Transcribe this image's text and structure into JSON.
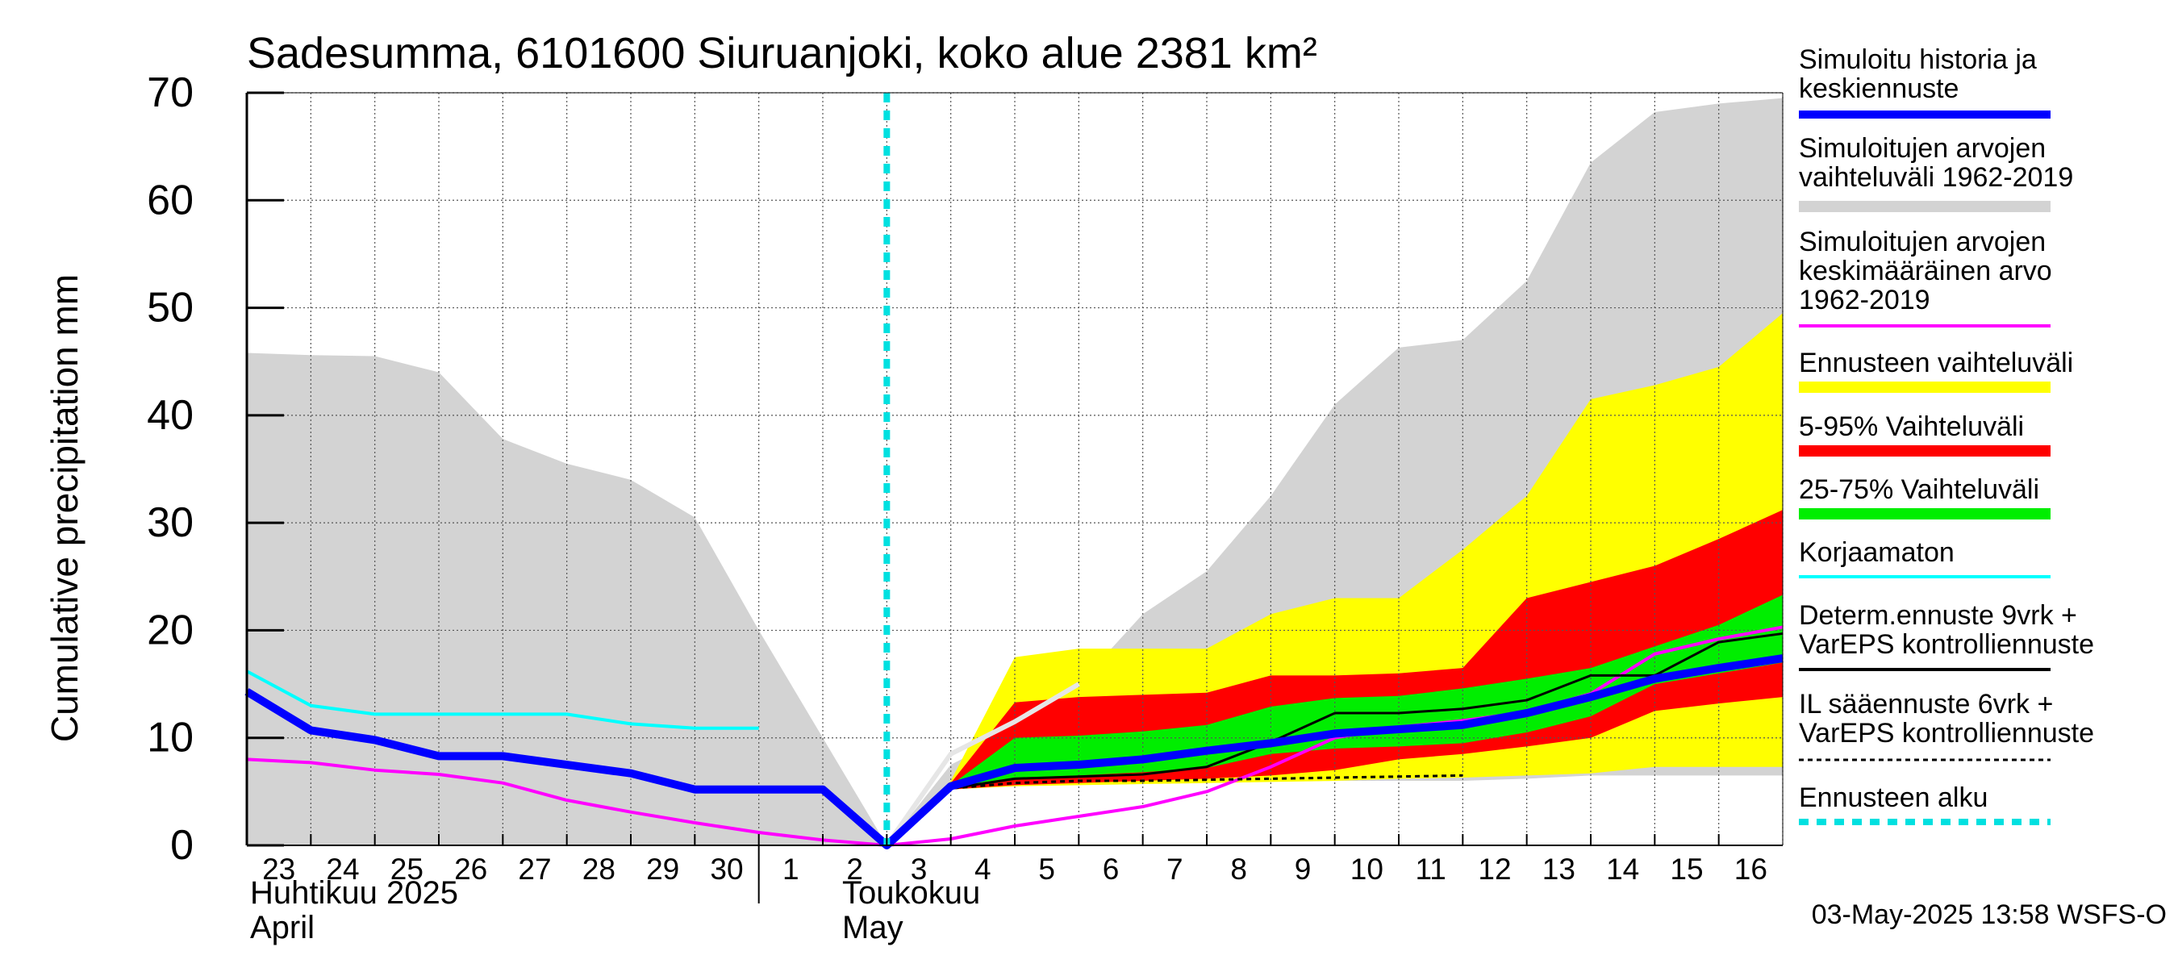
{
  "chart_data": {
    "type": "area",
    "title": "Sadesumma, 6101600 Siuruanjoki, koko alue 2381 km²",
    "ylabel": "Cumulative precipitation   mm",
    "ylim": [
      0,
      70
    ],
    "yticks": [
      0,
      10,
      20,
      30,
      40,
      50,
      60,
      70
    ],
    "x_ticks": [
      "23",
      "24",
      "25",
      "26",
      "27",
      "28",
      "29",
      "30",
      "1",
      "2",
      "3",
      "4",
      "5",
      "6",
      "7",
      "8",
      "9",
      "10",
      "11",
      "12",
      "13",
      "14",
      "15",
      "16"
    ],
    "x_start": "2025-04-23",
    "x_end": "2025-05-17",
    "month_labels": [
      {
        "line1": "Huhtikuu  2025",
        "line2": "April",
        "date": "2025-04-23"
      },
      {
        "line1": "Toukokuu",
        "line2": "May",
        "date": "2025-05-02"
      }
    ],
    "forecast_start": "2025-05-03",
    "timestamp": "03-May-2025 13:58 WSFS-O",
    "colors": {
      "sim": "#0000ff",
      "hist_range": "#d3d3d3",
      "hist_mean": "#ff00ff",
      "ens_range": "#ffff00",
      "p5_95": "#ff0000",
      "p25_75": "#00ee00",
      "uncorrected": "#00ffff",
      "determ": "#000000",
      "start": "#00e0e0"
    },
    "legend": [
      {
        "label": "Simuloitu historia ja\nkeskiennuste",
        "color": "#0000ff",
        "style": "thick"
      },
      {
        "label": "Simuloitujen arvojen\nvaihteluväli 1962-2019",
        "color": "#d3d3d3",
        "style": "band"
      },
      {
        "label": "Simuloitujen arvojen\nkeskimääräinen arvo\n   1962-2019",
        "color": "#ff00ff",
        "style": "line"
      },
      {
        "label": "Ennusteen vaihteluväli",
        "color": "#ffff00",
        "style": "band"
      },
      {
        "label": "5-95% Vaihteluväli",
        "color": "#ff0000",
        "style": "band"
      },
      {
        "label": "25-75% Vaihteluväli",
        "color": "#00ee00",
        "style": "band"
      },
      {
        "label": "Korjaamaton",
        "color": "#00ffff",
        "style": "line"
      },
      {
        "label": "Determ.ennuste 9vrk +\nVarEPS kontrolliennuste",
        "color": "#000000",
        "style": "line"
      },
      {
        "label": "IL sääennuste 6vrk  +\n  VarEPS kontrolliennuste",
        "color": "#000000",
        "style": "dashed"
      },
      {
        "label": "Ennusteen alku",
        "color": "#00e0e0",
        "style": "dotted"
      }
    ],
    "series": [
      {
        "name": "Simuloitujen arvojen vaihteluväli 1962-2019",
        "kind": "band",
        "x": [
          "2025-04-23",
          "2025-04-24",
          "2025-04-25",
          "2025-04-26",
          "2025-04-27",
          "2025-04-28",
          "2025-04-29",
          "2025-04-30",
          "2025-05-01",
          "2025-05-02",
          "2025-05-03",
          "2025-05-04",
          "2025-05-05",
          "2025-05-06",
          "2025-05-07",
          "2025-05-08",
          "2025-05-09",
          "2025-05-10",
          "2025-05-11",
          "2025-05-12",
          "2025-05-13",
          "2025-05-14",
          "2025-05-15",
          "2025-05-16",
          "2025-05-17"
        ],
        "lower": [
          0,
          0,
          0,
          0,
          0,
          0,
          0,
          0,
          0,
          0,
          0,
          5.5,
          6,
          6,
          6,
          6,
          6,
          6,
          6,
          6,
          6.2,
          6.5,
          6.5,
          6.5,
          6.5
        ],
        "upper": [
          45.8,
          45.6,
          45.5,
          44,
          37.8,
          35.5,
          34,
          30.5,
          20,
          10,
          0,
          7.5,
          10.5,
          15,
          21.5,
          25.5,
          32.5,
          41,
          46.3,
          47,
          52.5,
          63.5,
          68.2,
          69,
          69.5
        ]
      },
      {
        "name": "Ennusteen vaihteluväli",
        "kind": "band",
        "x": [
          "2025-05-03",
          "2025-05-04",
          "2025-05-05",
          "2025-05-06",
          "2025-05-07",
          "2025-05-08",
          "2025-05-09",
          "2025-05-10",
          "2025-05-11",
          "2025-05-12",
          "2025-05-13",
          "2025-05-14",
          "2025-05-15",
          "2025-05-16",
          "2025-05-17"
        ],
        "lower": [
          0,
          5.2,
          5.5,
          5.6,
          5.7,
          5.8,
          5.9,
          6.0,
          6.2,
          6.3,
          6.5,
          6.7,
          7.3,
          7.3,
          7.3
        ],
        "upper": [
          0,
          6,
          17.5,
          18.3,
          18.3,
          18.3,
          21.5,
          23,
          23,
          27.5,
          32.5,
          41.5,
          42.8,
          44.5,
          49.5
        ]
      },
      {
        "name": "5-95% Vaihteluväli",
        "kind": "band",
        "x": [
          "2025-05-03",
          "2025-05-04",
          "2025-05-05",
          "2025-05-06",
          "2025-05-07",
          "2025-05-08",
          "2025-05-09",
          "2025-05-10",
          "2025-05-11",
          "2025-05-12",
          "2025-05-13",
          "2025-05-14",
          "2025-05-15",
          "2025-05-16",
          "2025-05-17"
        ],
        "lower": [
          0,
          5.2,
          5.6,
          5.8,
          6,
          6.2,
          6.5,
          7,
          8,
          8.5,
          9.2,
          10,
          12.5,
          13.2,
          13.8
        ],
        "upper": [
          0,
          5.8,
          13.3,
          13.8,
          14,
          14.2,
          15.8,
          15.8,
          16,
          16.5,
          23,
          24.5,
          26,
          28.5,
          31.2
        ]
      },
      {
        "name": "25-75% Vaihteluväli",
        "kind": "band",
        "x": [
          "2025-05-03",
          "2025-05-04",
          "2025-05-05",
          "2025-05-06",
          "2025-05-07",
          "2025-05-08",
          "2025-05-09",
          "2025-05-10",
          "2025-05-11",
          "2025-05-12",
          "2025-05-13",
          "2025-05-14",
          "2025-05-15",
          "2025-05-16",
          "2025-05-17"
        ],
        "lower": [
          0,
          5.4,
          6.3,
          6.5,
          6.8,
          7.2,
          8.5,
          9,
          9.2,
          9.5,
          10.5,
          12,
          15,
          16,
          17
        ],
        "upper": [
          0,
          5.6,
          10,
          10.2,
          10.6,
          11.2,
          12.9,
          13.7,
          13.9,
          14.6,
          15.5,
          16.5,
          18.5,
          20.5,
          23.3
        ]
      },
      {
        "name": "Simuloitujen arvojen keskimääräinen arvo 1962-2019",
        "kind": "line",
        "x": [
          "2025-04-23",
          "2025-04-24",
          "2025-04-25",
          "2025-04-26",
          "2025-04-27",
          "2025-04-28",
          "2025-04-29",
          "2025-04-30",
          "2025-05-01",
          "2025-05-02",
          "2025-05-03",
          "2025-05-04",
          "2025-05-05",
          "2025-05-06",
          "2025-05-07",
          "2025-05-08",
          "2025-05-09",
          "2025-05-10",
          "2025-05-11",
          "2025-05-12",
          "2025-05-13",
          "2025-05-14",
          "2025-05-15",
          "2025-05-16",
          "2025-05-17"
        ],
        "values": [
          8,
          7.7,
          7,
          6.6,
          5.8,
          4.2,
          3.1,
          2.1,
          1.2,
          0.5,
          0,
          0.6,
          1.8,
          2.7,
          3.6,
          5,
          7.3,
          10,
          11,
          11.6,
          12.4,
          14.1,
          17.8,
          19.2,
          20.3
        ]
      },
      {
        "name": "Korjaamaton",
        "kind": "line",
        "x": [
          "2025-04-23",
          "2025-04-24",
          "2025-04-25",
          "2025-04-26",
          "2025-04-27",
          "2025-04-28",
          "2025-04-29",
          "2025-04-30",
          "2025-05-01"
        ],
        "values": [
          16.2,
          13,
          12.2,
          12.2,
          12.2,
          12.2,
          11.3,
          10.9,
          10.9
        ]
      },
      {
        "name": "Korjaamaton ennuste",
        "kind": "line",
        "x": [
          "2025-05-03",
          "2025-05-04",
          "2025-05-05",
          "2025-05-06"
        ],
        "values": [
          0,
          8.5,
          11.5,
          15
        ]
      },
      {
        "name": "IL sääennuste 6vrk + VarEPS kontrolliennuste",
        "kind": "dashed",
        "x": [
          "2025-05-03",
          "2025-05-04",
          "2025-05-05",
          "2025-05-06",
          "2025-05-07",
          "2025-05-08",
          "2025-05-09",
          "2025-05-10",
          "2025-05-11",
          "2025-05-12"
        ],
        "values": [
          0,
          5.3,
          5.8,
          6,
          6,
          6.1,
          6.2,
          6.3,
          6.4,
          6.5
        ]
      },
      {
        "name": "Determ.ennuste 9vrk + VarEPS kontrolliennuste",
        "kind": "line",
        "x": [
          "2025-05-03",
          "2025-05-04",
          "2025-05-05",
          "2025-05-06",
          "2025-05-07",
          "2025-05-08",
          "2025-05-09",
          "2025-05-10",
          "2025-05-11",
          "2025-05-12",
          "2025-05-13",
          "2025-05-14",
          "2025-05-15",
          "2025-05-16",
          "2025-05-17"
        ],
        "values": [
          0,
          5.3,
          6.2,
          6.4,
          6.6,
          7.3,
          9.6,
          12.3,
          12.3,
          12.7,
          13.5,
          15.8,
          15.8,
          18.9,
          19.7
        ]
      },
      {
        "name": "Simuloitu historia ja keskiennuste",
        "kind": "thick",
        "x": [
          "2025-04-23",
          "2025-04-24",
          "2025-04-25",
          "2025-04-26",
          "2025-04-27",
          "2025-04-28",
          "2025-04-29",
          "2025-04-30",
          "2025-05-01",
          "2025-05-02",
          "2025-05-03",
          "2025-05-04",
          "2025-05-05",
          "2025-05-06",
          "2025-05-07",
          "2025-05-08",
          "2025-05-09",
          "2025-05-10",
          "2025-05-11",
          "2025-05-12",
          "2025-05-13",
          "2025-05-14",
          "2025-05-15",
          "2025-05-16",
          "2025-05-17"
        ],
        "values": [
          14.3,
          10.7,
          9.8,
          8.3,
          8.3,
          7.5,
          6.7,
          5.2,
          5.2,
          5.2,
          0,
          5.5,
          7.2,
          7.5,
          8,
          8.8,
          9.5,
          10.4,
          10.8,
          11.2,
          12.3,
          13.8,
          15.5,
          16.5,
          17.4
        ]
      }
    ]
  }
}
